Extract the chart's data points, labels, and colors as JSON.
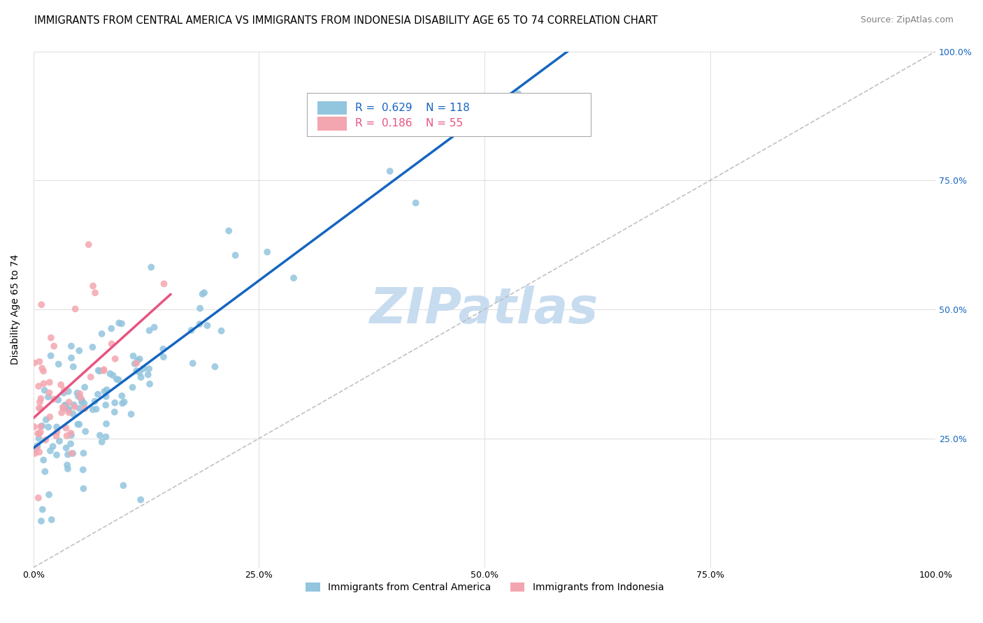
{
  "title": "IMMIGRANTS FROM CENTRAL AMERICA VS IMMIGRANTS FROM INDONESIA DISABILITY AGE 65 TO 74 CORRELATION CHART",
  "source": "Source: ZipAtlas.com",
  "ylabel": "Disability Age 65 to 74",
  "r_blue": 0.629,
  "n_blue": 118,
  "r_pink": 0.186,
  "n_pink": 55,
  "blue_color": "#92C5DE",
  "pink_color": "#F4A6B0",
  "trend_blue": "#1565C0",
  "trend_pink": "#E75480",
  "diag_color": "#BBBBBB",
  "watermark": "ZIPatlas",
  "xlim": [
    0.0,
    1.0
  ],
  "ylim": [
    0.0,
    1.0
  ],
  "xticks": [
    0.0,
    0.25,
    0.5,
    0.75,
    1.0
  ],
  "xtick_labels": [
    "0.0%",
    "25.0%",
    "50.0%",
    "75.0%",
    "100.0%"
  ],
  "ytick_labels": [
    "25.0%",
    "50.0%",
    "75.0%",
    "100.0%"
  ],
  "yticks": [
    0.25,
    0.5,
    0.75,
    1.0
  ],
  "legend_blue": "Immigrants from Central America",
  "legend_pink": "Immigrants from Indonesia",
  "fig_width": 14.06,
  "fig_height": 8.92,
  "title_fontsize": 10.5,
  "axis_label_fontsize": 10,
  "tick_fontsize": 9,
  "legend_fontsize": 10,
  "watermark_color": "#C8DCF0",
  "watermark_fontsize": 52
}
